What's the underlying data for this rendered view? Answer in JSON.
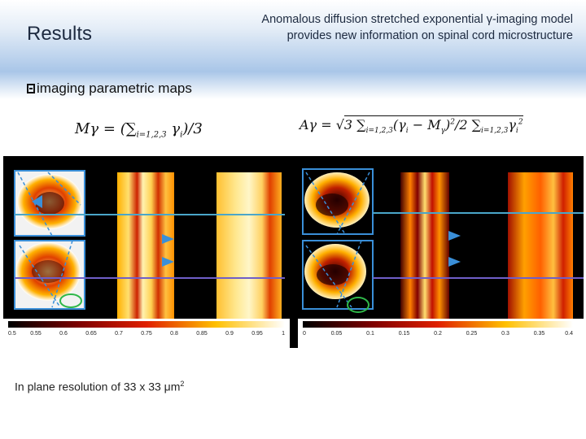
{
  "slide": {
    "title": "Results",
    "heading_right": "Anomalous diffusion stretched exponential γ-imaging model provides new information on spinal cord microstructure",
    "subtitle": "imaging parametric maps",
    "formula_left": {
      "lhs": "Mγ",
      "rhs": "= (∑",
      "sub": "i=1,2,3",
      "tail": "γi)/3"
    },
    "formula_right": {
      "lhs": "Aγ",
      "text": "3 ∑ i=1,2,3 (γi − Mγ)² / 2 ∑ i=1,2,3 γi²"
    },
    "footnote": "In plane resolution of 33 x 33 μm",
    "footnote_sup": "2"
  },
  "colorbar_left": {
    "ticks": [
      "0.5",
      "0.55",
      "0.6",
      "0.65",
      "0.7",
      "0.75",
      "0.8",
      "0.85",
      "0.9",
      "0.95",
      "1"
    ]
  },
  "colorbar_right": {
    "ticks": [
      "0",
      "0.05",
      "0.1",
      "0.15",
      "0.2",
      "0.25",
      "0.3",
      "0.35",
      "0.4"
    ]
  },
  "colors": {
    "header_blue": "#a9c6e8",
    "roi_blue": "#3a8fd8",
    "line_teal": "#4aa6c9",
    "line_purple": "#6f5fc8",
    "circle_green": "#2fb84a"
  }
}
